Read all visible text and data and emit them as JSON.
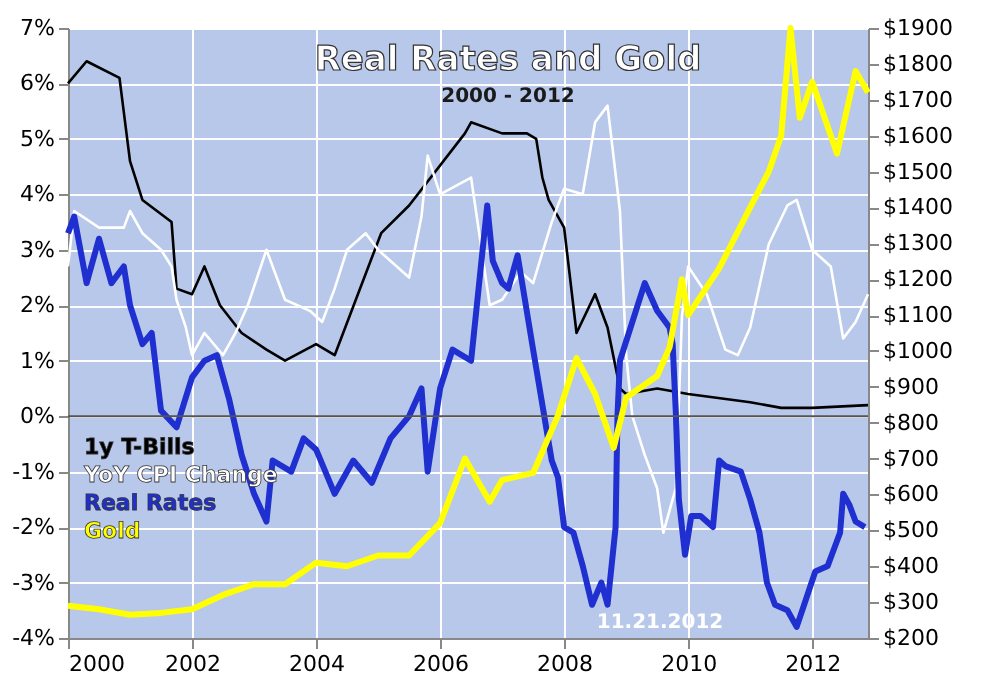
{
  "chart_data": {
    "type": "line",
    "title": "Real Rates and Gold",
    "subtitle": "2000 - 2012",
    "annotations": [
      "11.21.2012"
    ],
    "xlim": [
      2000,
      2012.9
    ],
    "xticks": [
      2000,
      2002,
      2004,
      2006,
      2008,
      2010,
      2012
    ],
    "ylim": [
      -4,
      7
    ],
    "yticks": [
      {
        "value": 7,
        "label": "7%"
      },
      {
        "value": 6,
        "label": "6%"
      },
      {
        "value": 5,
        "label": "5%"
      },
      {
        "value": 4,
        "label": "4%"
      },
      {
        "value": 3,
        "label": "3%"
      },
      {
        "value": 2,
        "label": "2%"
      },
      {
        "value": 1,
        "label": "1%"
      },
      {
        "value": 0,
        "label": "0%"
      },
      {
        "value": -1,
        "label": "-1%"
      },
      {
        "value": -2,
        "label": "-2%"
      },
      {
        "value": -3,
        "label": "-3%"
      },
      {
        "value": -4,
        "label": "-4%"
      }
    ],
    "y2lim": [
      200,
      1900
    ],
    "y2ticks": [
      {
        "value": 1900,
        "label": "$1900"
      },
      {
        "value": 1800,
        "label": "$1800"
      },
      {
        "value": 1700,
        "label": "$1700"
      },
      {
        "value": 1600,
        "label": "$1600"
      },
      {
        "value": 1500,
        "label": "$1500"
      },
      {
        "value": 1400,
        "label": "$1400"
      },
      {
        "value": 1300,
        "label": "$1300"
      },
      {
        "value": 1200,
        "label": "$1200"
      },
      {
        "value": 1100,
        "label": "$1100"
      },
      {
        "value": 1000,
        "label": "$1000"
      },
      {
        "value": 900,
        "label": "$900"
      },
      {
        "value": 800,
        "label": "$800"
      },
      {
        "value": 700,
        "label": "$700"
      },
      {
        "value": 600,
        "label": "$600"
      },
      {
        "value": 500,
        "label": "$500"
      },
      {
        "value": 400,
        "label": "$400"
      },
      {
        "value": 300,
        "label": "$300"
      },
      {
        "value": 200,
        "label": "$200"
      }
    ],
    "grid": true,
    "legend": "bottom left",
    "line_style": "solid",
    "marker": "none",
    "ref_lines": [
      {
        "axis": "y",
        "value": 0,
        "color": "#555555"
      }
    ],
    "series": [
      {
        "name": "1y T-Bills",
        "color": "#000000",
        "x": [
          2000.0,
          2000.3,
          2000.83,
          2001.0,
          2001.2,
          2001.67,
          2001.75,
          2002.0,
          2002.2,
          2002.45,
          2002.8,
          2003.2,
          2003.5,
          2004.0,
          2004.3,
          2005.05,
          2005.5,
          2006.4,
          2006.5,
          2007.0,
          2007.4,
          2007.55,
          2007.65,
          2007.75,
          2008.0,
          2008.2,
          2008.5,
          2008.7,
          2008.9,
          2009.0,
          2009.5,
          2010.0,
          2011.0,
          2011.5,
          2012.0,
          2012.9
        ],
        "values": [
          6.0,
          6.4,
          6.1,
          4.6,
          3.9,
          3.5,
          2.3,
          2.2,
          2.7,
          2.0,
          1.5,
          1.2,
          1.0,
          1.3,
          1.1,
          3.3,
          3.8,
          5.1,
          5.3,
          5.1,
          5.1,
          5.0,
          4.3,
          3.9,
          3.4,
          1.5,
          2.2,
          1.6,
          0.5,
          0.4,
          0.5,
          0.4,
          0.25,
          0.15,
          0.15,
          0.2
        ]
      },
      {
        "name": "YoY CPI Change",
        "color": "#ffffff",
        "x": [
          2000.0,
          2000.1,
          2000.5,
          2000.9,
          2001.0,
          2001.2,
          2001.5,
          2001.67,
          2001.75,
          2001.9,
          2002.0,
          2002.2,
          2002.5,
          2002.7,
          2002.9,
          2003.2,
          2003.5,
          2003.9,
          2004.1,
          2004.3,
          2004.5,
          2004.8,
          2005.0,
          2005.5,
          2005.7,
          2005.8,
          2006.0,
          2006.5,
          2006.8,
          2007.0,
          2007.3,
          2007.5,
          2007.8,
          2008.0,
          2008.3,
          2008.5,
          2008.7,
          2008.9,
          2009.0,
          2009.1,
          2009.3,
          2009.5,
          2009.6,
          2009.8,
          2009.9,
          2010.0,
          2010.3,
          2010.6,
          2010.8,
          2011.0,
          2011.3,
          2011.6,
          2011.75,
          2012.0,
          2012.3,
          2012.5,
          2012.7,
          2012.9
        ],
        "values": [
          2.7,
          3.7,
          3.4,
          3.4,
          3.7,
          3.3,
          3.0,
          2.7,
          2.1,
          1.6,
          1.1,
          1.5,
          1.1,
          1.5,
          2.0,
          3.0,
          2.1,
          1.9,
          1.7,
          2.3,
          3.0,
          3.3,
          3.0,
          2.5,
          3.6,
          4.7,
          4.0,
          4.3,
          2.0,
          2.1,
          2.6,
          2.4,
          3.5,
          4.1,
          4.0,
          5.3,
          5.6,
          3.7,
          1.1,
          0.0,
          -0.7,
          -1.3,
          -2.1,
          -1.3,
          1.8,
          2.7,
          2.2,
          1.2,
          1.1,
          1.6,
          3.1,
          3.8,
          3.9,
          3.0,
          2.7,
          1.4,
          1.7,
          2.2
        ]
      },
      {
        "name": "Real Rates",
        "color": "#1f2fd0",
        "x": [
          2000.0,
          2000.1,
          2000.3,
          2000.5,
          2000.7,
          2000.9,
          2001.0,
          2001.2,
          2001.35,
          2001.5,
          2001.75,
          2002.0,
          2002.2,
          2002.4,
          2002.6,
          2002.8,
          2003.0,
          2003.2,
          2003.3,
          2003.6,
          2003.8,
          2004.0,
          2004.3,
          2004.6,
          2004.9,
          2005.2,
          2005.5,
          2005.7,
          2005.8,
          2006.0,
          2006.2,
          2006.5,
          2006.76,
          2006.85,
          2007.0,
          2007.1,
          2007.25,
          2007.5,
          2007.8,
          2007.9,
          2008.0,
          2008.15,
          2008.3,
          2008.45,
          2008.6,
          2008.7,
          2008.83,
          2008.86,
          2008.9,
          2009.3,
          2009.5,
          2009.7,
          2009.75,
          2009.8,
          2009.85,
          2009.95,
          2010.05,
          2010.2,
          2010.4,
          2010.5,
          2010.6,
          2010.85,
          2011.0,
          2011.15,
          2011.27,
          2011.4,
          2011.6,
          2011.75,
          2011.9,
          2012.05,
          2012.25,
          2012.35,
          2012.45,
          2012.5,
          2012.6,
          2012.7,
          2012.85
        ],
        "values": [
          3.3,
          3.6,
          2.4,
          3.2,
          2.4,
          2.7,
          2.0,
          1.3,
          1.5,
          0.1,
          -0.2,
          0.7,
          1.0,
          1.1,
          0.3,
          -0.7,
          -1.4,
          -1.9,
          -0.8,
          -1.0,
          -0.4,
          -0.6,
          -1.4,
          -0.8,
          -1.2,
          -0.4,
          0.0,
          0.5,
          -1.0,
          0.5,
          1.2,
          1.0,
          3.8,
          2.8,
          2.4,
          2.3,
          2.9,
          1.2,
          -0.8,
          -1.1,
          -2.0,
          -2.1,
          -2.7,
          -3.4,
          -3.0,
          -3.4,
          -2.0,
          0.0,
          1.0,
          2.4,
          1.9,
          1.6,
          1.3,
          0.1,
          -1.5,
          -2.5,
          -1.8,
          -1.8,
          -2.0,
          -0.8,
          -0.9,
          -1.0,
          -1.5,
          -2.1,
          -3.0,
          -3.4,
          -3.5,
          -3.8,
          -3.3,
          -2.8,
          -2.7,
          -2.4,
          -2.1,
          -1.4,
          -1.6,
          -1.9,
          -2.0
        ]
      },
      {
        "name": "Gold",
        "color": "#ffff00",
        "axis": "y2",
        "x": [
          2000.0,
          2000.5,
          2001.0,
          2001.5,
          2002.0,
          2002.5,
          2003.0,
          2003.5,
          2004.0,
          2004.5,
          2005.0,
          2005.5,
          2006.0,
          2006.4,
          2006.8,
          2007.0,
          2007.5,
          2007.9,
          2008.2,
          2008.5,
          2008.8,
          2009.0,
          2009.5,
          2009.7,
          2009.9,
          2010.0,
          2010.5,
          2011.0,
          2011.3,
          2011.5,
          2011.65,
          2011.8,
          2012.0,
          2012.4,
          2012.7,
          2012.9
        ],
        "values": [
          290,
          280,
          265,
          270,
          280,
          320,
          350,
          350,
          410,
          400,
          430,
          430,
          520,
          700,
          580,
          640,
          660,
          820,
          980,
          880,
          730,
          870,
          930,
          1010,
          1200,
          1100,
          1230,
          1400,
          1500,
          1600,
          1900,
          1650,
          1750,
          1550,
          1780,
          1720
        ]
      }
    ]
  }
}
